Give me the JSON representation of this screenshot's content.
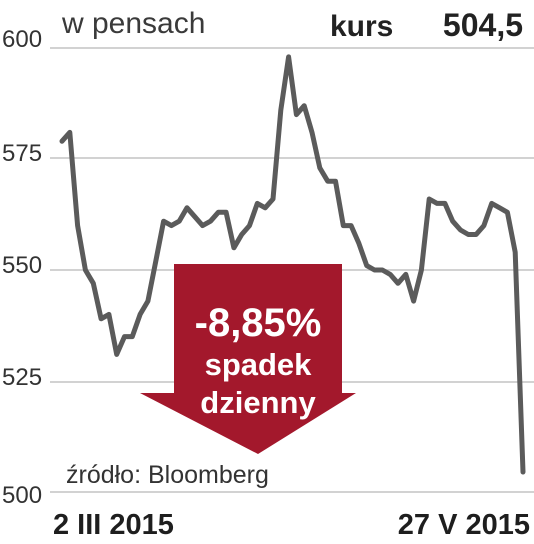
{
  "chart_data": {
    "type": "line",
    "unit_label": "w pensach",
    "price_label": "kurs",
    "price_value": "504,5",
    "ylim": [
      500,
      600
    ],
    "yticks": [
      "600",
      "575",
      "550",
      "525",
      "500"
    ],
    "x_labels": [
      "2 III 2015",
      "27 V 2015"
    ],
    "source": "źródło: Bloomberg",
    "annotation": {
      "value": "-8,85%",
      "line1": "spadek",
      "line2": "dzienny"
    },
    "grid": true,
    "legend": "none",
    "line_color": "#5b5b5b",
    "arrow_color": "#a3182c",
    "series": [
      {
        "values": [
          579,
          581,
          560,
          550,
          547,
          539,
          540,
          531,
          535,
          535,
          540,
          543,
          552,
          561,
          560,
          561,
          564,
          562,
          560,
          561,
          563,
          563,
          555,
          558,
          560,
          565,
          564,
          566,
          586,
          598,
          585,
          587,
          581,
          573,
          570,
          570,
          560,
          560,
          556,
          551,
          550,
          550,
          549,
          547,
          549,
          543,
          550,
          566,
          565,
          565,
          561,
          559,
          558,
          558,
          560,
          565,
          564,
          563,
          554,
          504.5
        ]
      }
    ]
  }
}
